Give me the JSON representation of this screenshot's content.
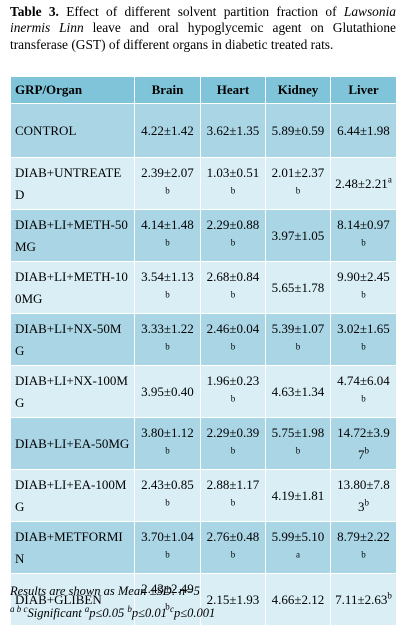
{
  "caption": {
    "label": "Table 3.",
    "text_a": " Effect of different solvent partition fraction of ",
    "species": "Lawsonia inermis Linn",
    "text_b": " leave and oral hypoglycemic agent on Glutathione transferase (GST) of different organs in diabetic treated rats."
  },
  "table": {
    "headers": [
      "GRP/Organ",
      "Brain",
      "Heart",
      "Kidney",
      "Liver"
    ],
    "rows": [
      {
        "group": "CONTROL",
        "brain": {
          "v": "4.22±1.42",
          "sup": ""
        },
        "heart": {
          "v": "3.62±1.35",
          "sup": ""
        },
        "kidney": {
          "v": "5.89±0.59",
          "sup": ""
        },
        "liver": {
          "v": "6.44±1.98",
          "sup": ""
        }
      },
      {
        "group": "DIAB+UNTREATED",
        "brain": {
          "v": "2.39±2.07",
          "sup": "b"
        },
        "heart": {
          "v": "1.03±0.51",
          "sup": "b"
        },
        "kidney": {
          "v": "2.01±2.37",
          "sup": "b"
        },
        "liver": {
          "v": "2.48±2.21",
          "sup": "a"
        }
      },
      {
        "group": "DIAB+LI+METH-50MG",
        "brain": {
          "v": "4.14±1.48",
          "sup": "b"
        },
        "heart": {
          "v": "2.29±0.88",
          "sup": "b"
        },
        "kidney": {
          "v": "3.97±1.05",
          "sup": ""
        },
        "liver": {
          "v": "8.14±0.97",
          "sup": "b"
        }
      },
      {
        "group": "DIAB+LI+METH-100MG",
        "brain": {
          "v": "3.54±1.13",
          "sup": "b"
        },
        "heart": {
          "v": "2.68±0.84",
          "sup": "b"
        },
        "kidney": {
          "v": "5.65±1.78",
          "sup": ""
        },
        "liver": {
          "v": "9.90±2.45",
          "sup": "b"
        }
      },
      {
        "group": "DIAB+LI+NX-50MG",
        "brain": {
          "v": "3.33±1.22",
          "sup": "b"
        },
        "heart": {
          "v": "2.46±0.04",
          "sup": "b"
        },
        "kidney": {
          "v": "5.39±1.07",
          "sup": "b"
        },
        "liver": {
          "v": "3.02±1.65",
          "sup": "b"
        }
      },
      {
        "group": "DIAB+LI+NX-100MG",
        "brain": {
          "v": "3.95±0.40",
          "sup": ""
        },
        "heart": {
          "v": "1.96±0.23",
          "sup": "b"
        },
        "kidney": {
          "v": "4.63±1.34",
          "sup": ""
        },
        "liver": {
          "v": "4.74±6.04",
          "sup": "b"
        }
      },
      {
        "group": "DIAB+LI+EA-50MG",
        "brain": {
          "v": "3.80±1.12",
          "sup": "b"
        },
        "heart": {
          "v": "2.29±0.39",
          "sup": "b"
        },
        "kidney": {
          "v": "5.75±1.98",
          "sup": "b"
        },
        "liver": {
          "v": "14.72±3.97",
          "sup": "b"
        }
      },
      {
        "group": "DIAB+LI+EA-100MG",
        "brain": {
          "v": "2.43±0.85",
          "sup": "b"
        },
        "heart": {
          "v": "2.88±1.17",
          "sup": "b"
        },
        "kidney": {
          "v": "4.19±1.81",
          "sup": ""
        },
        "liver": {
          "v": "13.80±7.83",
          "sup": "b"
        }
      },
      {
        "group": "DIAB+METFORMIN",
        "brain": {
          "v": "3.70±1.04",
          "sup": "b"
        },
        "heart": {
          "v": "2.76±0.48",
          "sup": "b"
        },
        "kidney": {
          "v": "5.99±5.10",
          "sup": "a"
        },
        "liver": {
          "v": "8.79±2.22",
          "sup": "b"
        }
      },
      {
        "group": "DIAB+GLIBEN",
        "brain": {
          "v": "2.43±2.49",
          "sup": "b"
        },
        "heart": {
          "v": "2.15±1.93",
          "sup": ""
        },
        "kidney": {
          "v": "4.66±2.12",
          "sup": ""
        },
        "liver": {
          "v": "7.11±2.63",
          "sup": "b"
        }
      }
    ]
  },
  "notes": {
    "results": "Results are shown as Mean ±SD: n=5",
    "sig_prefix_sup": "a b c",
    "sig_word": "Significant ",
    "sig_a": "p≤0.05 ",
    "sig_b": "p≤0.01 ",
    "sig_c": "p≤0.001",
    "sup_a": "a",
    "sup_b": "b",
    "sup_c": "c"
  }
}
